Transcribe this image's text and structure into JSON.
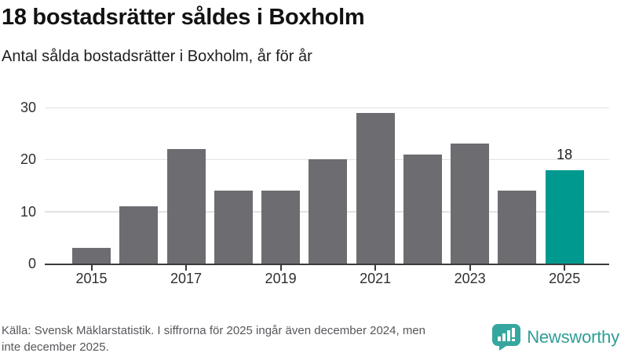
{
  "header": {
    "title": "18 bostadsrätter såldes i Boxholm",
    "subtitle": "Antal sålda bostadsrätter i Boxholm, år för år"
  },
  "chart_data": {
    "type": "bar",
    "title": "18 bostadsrätter såldes i Boxholm",
    "subtitle": "Antal sålda bostadsrätter i Boxholm, år för år",
    "categories": [
      "2015",
      "2016",
      "2017",
      "2018",
      "2019",
      "2020",
      "2021",
      "2022",
      "2023",
      "2024",
      "2025"
    ],
    "values": [
      3,
      11,
      22,
      14,
      14,
      20,
      29,
      21,
      23,
      14,
      18
    ],
    "highlight_index": 10,
    "highlight_value_label": "18",
    "xlabel": "",
    "ylabel": "",
    "ylim": [
      0,
      30
    ],
    "y_ticks": [
      0,
      10,
      20,
      30
    ],
    "x_tick_labels": [
      "2015",
      "2017",
      "2019",
      "2021",
      "2023",
      "2025"
    ],
    "x_tick_indices": [
      0,
      2,
      4,
      6,
      8,
      10
    ],
    "grid": "horizontal",
    "legend": "none",
    "colors": {
      "bar": "#6D6C71",
      "highlight": "#00998F",
      "gridline": "#E2E2E2",
      "axis": "#3B3B3B"
    }
  },
  "footer": {
    "source_line1": "Källa: Svensk Mäklarstatistik. I siffrorna för 2025 ingår även december 2024, men",
    "source_line2": "inte december 2025.",
    "brand": "Newsworthy",
    "brand_color": "#2E9E96"
  }
}
